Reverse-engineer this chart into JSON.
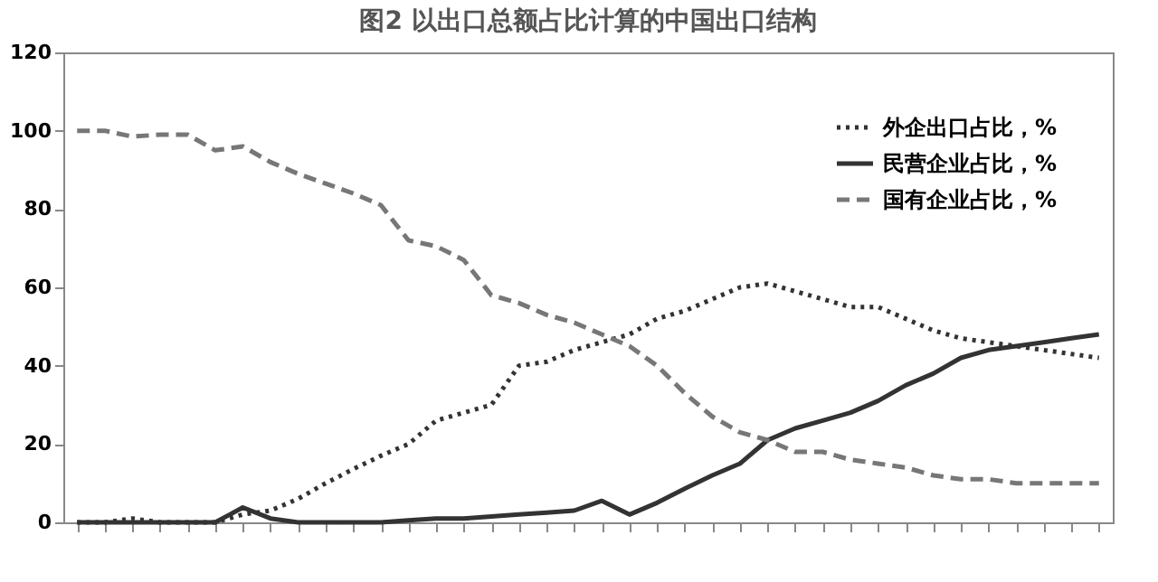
{
  "chart_data": {
    "type": "line",
    "title": "图2 以出口总额占比计算的中国出口结构",
    "categories": [
      null,
      null,
      null,
      null,
      null,
      null,
      null,
      null,
      null,
      null,
      null,
      null,
      null,
      null,
      null,
      null,
      null,
      null,
      null,
      null,
      null,
      null,
      null,
      null,
      null,
      null,
      null,
      null,
      null,
      null,
      null,
      null,
      null,
      null,
      null,
      null,
      null,
      null
    ],
    "series": [
      {
        "name": "外企出口占比，%",
        "color": "#333333",
        "line_style": "dotted",
        "values": [
          0,
          0,
          1,
          0,
          0,
          0,
          2,
          3,
          6,
          10,
          13.6,
          17,
          20,
          26,
          28,
          30,
          40,
          41,
          44,
          46,
          48,
          52,
          54,
          57,
          60,
          61,
          59,
          57,
          55,
          55,
          52,
          49,
          47,
          46,
          45,
          44,
          43,
          42
        ]
      },
      {
        "name": "民营企业占比，%",
        "color": "#333333",
        "line_style": "solid",
        "values": [
          0,
          0,
          0,
          0,
          0,
          0,
          3.8,
          1,
          0,
          0,
          0,
          0,
          0.5,
          1,
          1,
          1.5,
          2,
          2.5,
          3,
          5.5,
          2,
          5,
          8.6,
          12,
          15,
          21,
          24,
          26,
          28,
          31,
          35,
          38,
          42,
          44,
          45,
          46,
          47,
          48
        ]
      },
      {
        "name": "国有企业占比，%",
        "color": "#777777",
        "line_style": "dashed",
        "values": [
          100,
          100,
          98.5,
          99,
          99,
          95,
          96,
          92,
          89,
          86.5,
          84,
          81,
          72,
          70.5,
          67,
          58,
          56,
          53,
          51,
          48,
          45,
          40,
          33,
          27,
          23,
          21,
          18,
          18,
          16,
          15,
          14,
          12,
          11,
          11,
          10,
          10,
          10,
          10
        ]
      }
    ],
    "ylim": [
      0,
      120
    ],
    "yticks": [
      0,
      20,
      40,
      60,
      80,
      100,
      120
    ],
    "grid": false,
    "legend": "top right",
    "marker": "none"
  }
}
